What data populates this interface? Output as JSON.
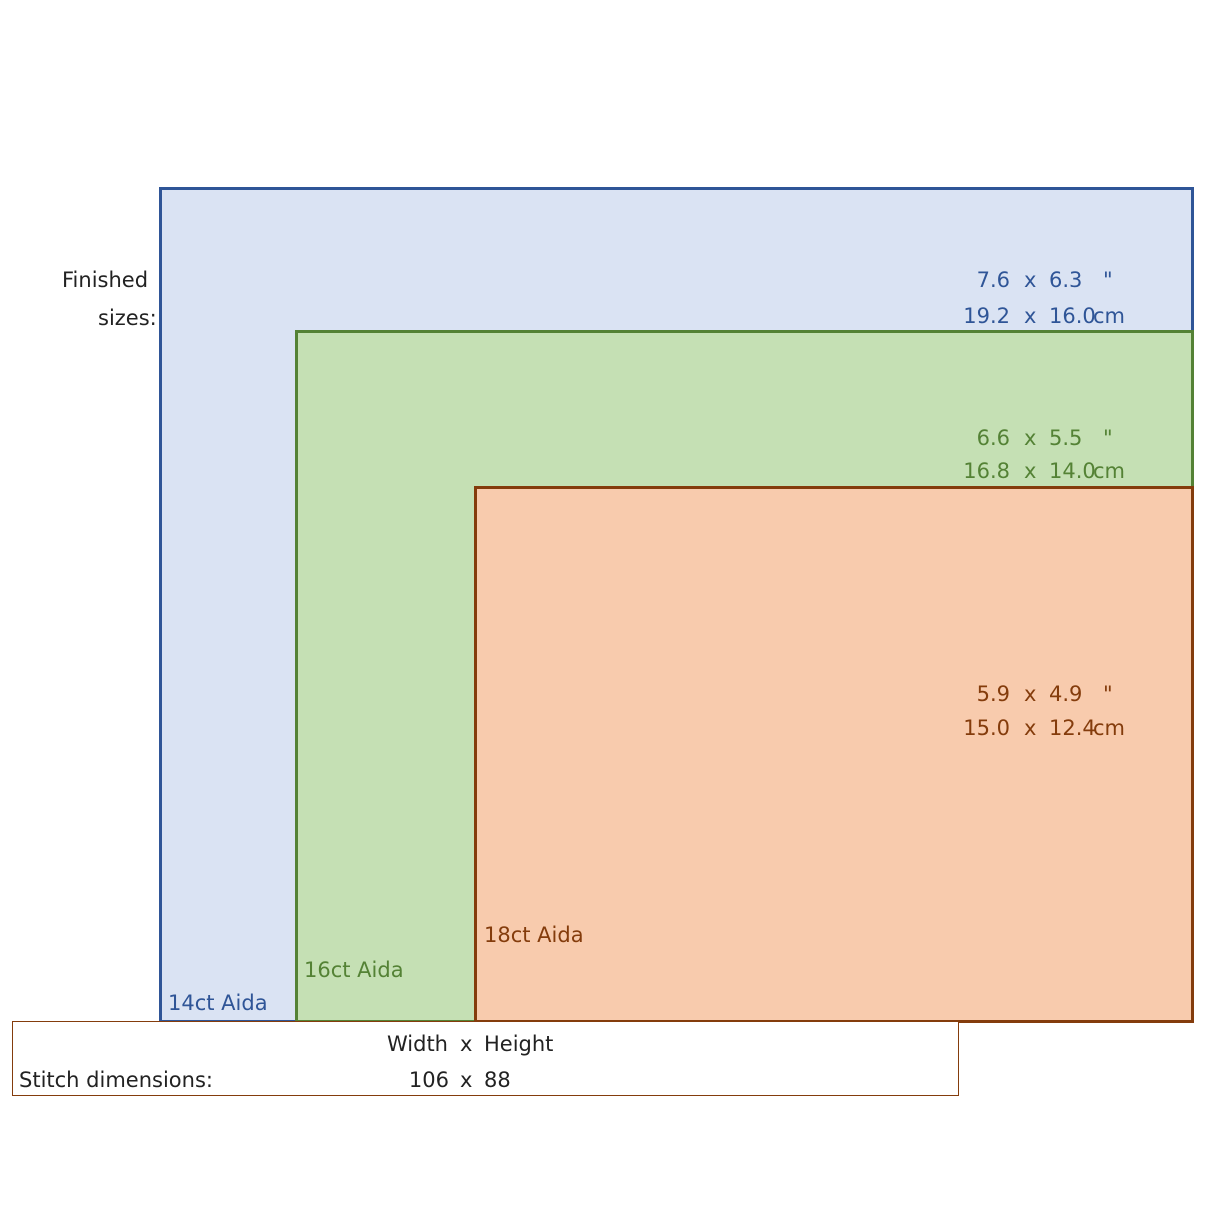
{
  "labels": {
    "finished_line1": "Finished",
    "finished_line2": "sizes:"
  },
  "fabrics": [
    {
      "name": "14ct Aida",
      "color": "#2f5597",
      "fill": "#dae3f3",
      "inches": {
        "width": "7.6",
        "x": "x",
        "height": "6.3",
        "unit": "\""
      },
      "cm": {
        "width": "19.2",
        "x": "x",
        "height": "16.0",
        "unit": "cm"
      }
    },
    {
      "name": "16ct Aida",
      "color": "#548235",
      "fill": "#c5e0b4",
      "inches": {
        "width": "6.6",
        "x": "x",
        "height": "5.5",
        "unit": "\""
      },
      "cm": {
        "width": "16.8",
        "x": "x",
        "height": "14.0",
        "unit": "cm"
      }
    },
    {
      "name": "18ct Aida",
      "color": "#843c0c",
      "fill": "#f8cbad",
      "inches": {
        "width": "5.9",
        "x": "x",
        "height": "4.9",
        "unit": "\""
      },
      "cm": {
        "width": "15.0",
        "x": "x",
        "height": "12.4",
        "unit": "cm"
      }
    }
  ],
  "stitch": {
    "header_width": "Width",
    "header_x": "x",
    "header_height": "Height",
    "label": "Stitch dimensions:",
    "width": "106",
    "x": "x",
    "height": "88"
  }
}
